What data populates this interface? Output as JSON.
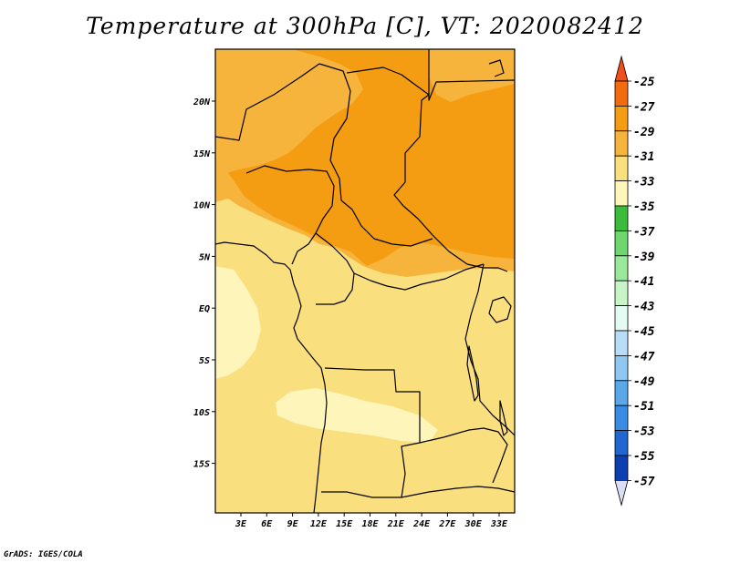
{
  "title": "Temperature at 300hPa [C], VT: 2020082412",
  "credit": "GrADS: IGES/COLA",
  "map": {
    "lat_ticks": [
      "20N",
      "15N",
      "10N",
      "5N",
      "EQ",
      "5S",
      "10S",
      "15S"
    ],
    "lon_ticks": [
      "3E",
      "6E",
      "9E",
      "12E",
      "15E",
      "18E",
      "21E",
      "24E",
      "27E",
      "30E",
      "33E"
    ]
  },
  "colorbar": {
    "labels": [
      "-25",
      "-27",
      "-29",
      "-31",
      "-33",
      "-35",
      "-37",
      "-39",
      "-41",
      "-43",
      "-45",
      "-47",
      "-49",
      "-51",
      "-53",
      "-55",
      "-57"
    ],
    "colors": {
      "top_arrow": "#f04e1a",
      "segments": [
        "#f26b0e",
        "#f49c12",
        "#f6b43c",
        "#fadf7f",
        "#fdf5b9",
        "#3bbd3b",
        "#6ed66e",
        "#9ae89a",
        "#c8f5c8",
        "#e4fbf4",
        "#b6dcf6",
        "#8fc7f2",
        "#5aa8ea",
        "#3a8be2",
        "#2067d2",
        "#0e3fb0"
      ],
      "bottom_arrow": "#dcdcf5"
    }
  },
  "field_colors": {
    "band_27_29": "#f49c12",
    "band_29_31": "#f6b43c",
    "band_31_33": "#fadf7f",
    "band_33_35": "#fdf5b9"
  }
}
